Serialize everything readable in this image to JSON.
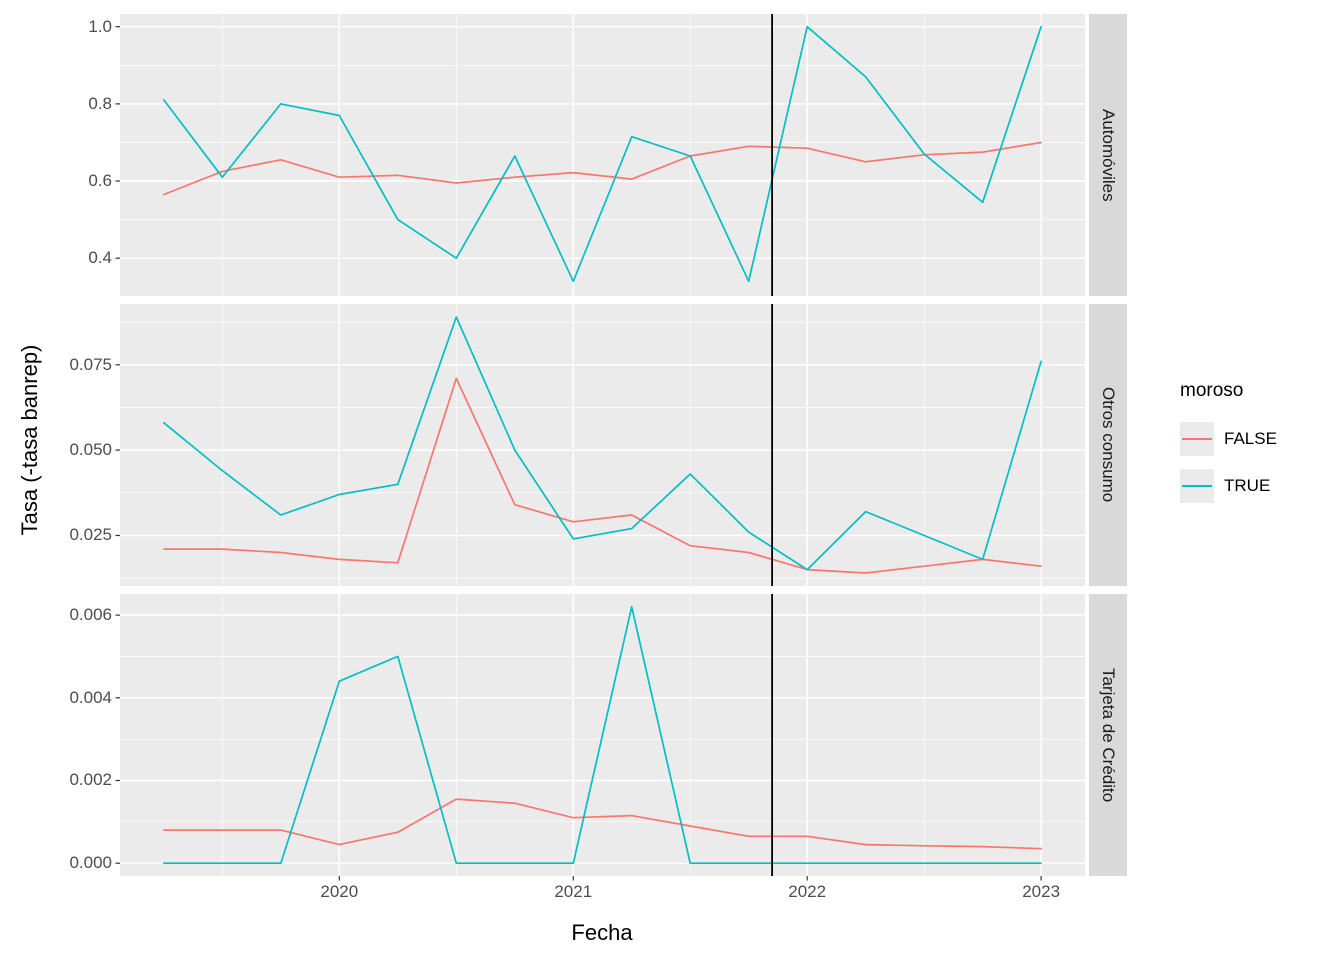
{
  "colors": {
    "false_series": "#F8766D",
    "true_series": "#00BFC4",
    "panel_bg": "#EBEBEB",
    "strip_bg": "#D9D9D9",
    "grid": "#FFFFFF",
    "tick_text": "#4D4D4D",
    "vline": "#000000"
  },
  "legend": {
    "title": "moroso",
    "entries": [
      {
        "label": "FALSE",
        "color": "#F8766D"
      },
      {
        "label": "TRUE",
        "color": "#00BFC4"
      }
    ]
  },
  "axes": {
    "x_label": "Fecha",
    "y_label": "Tasa (-tasa banrep)",
    "x_ticks": [
      2020,
      2021,
      2022,
      2023
    ],
    "xlim": [
      2019.0625,
      2023.1875
    ]
  },
  "vline_x": 2021.85,
  "chart_data": [
    {
      "type": "line",
      "facet": "Automóviles",
      "x": [
        2019.25,
        2019.5,
        2019.75,
        2020.0,
        2020.25,
        2020.5,
        2020.75,
        2021.0,
        2021.25,
        2021.5,
        2021.75,
        2022.0,
        2022.25,
        2022.5,
        2022.75,
        2023.0
      ],
      "series": [
        {
          "name": "FALSE",
          "values": [
            0.565,
            0.625,
            0.655,
            0.61,
            0.615,
            0.595,
            0.61,
            0.622,
            0.605,
            0.665,
            0.69,
            0.685,
            0.65,
            0.668,
            0.675,
            0.7
          ]
        },
        {
          "name": "TRUE",
          "values": [
            0.81,
            0.61,
            0.8,
            0.77,
            0.5,
            0.4,
            0.665,
            0.34,
            0.715,
            0.665,
            0.34,
            1.0,
            0.87,
            0.67,
            0.545,
            1.0
          ]
        }
      ],
      "y_ticks": [
        0.4,
        0.6,
        0.8,
        1.0
      ],
      "y_tick_labels": [
        "0.4",
        "0.6",
        "0.8",
        "1.0"
      ],
      "ylim": [
        0.302,
        1.033
      ]
    },
    {
      "type": "line",
      "facet": "Otros consumo",
      "x": [
        2019.25,
        2019.5,
        2019.75,
        2020.0,
        2020.25,
        2020.5,
        2020.75,
        2021.0,
        2021.25,
        2021.5,
        2021.75,
        2022.0,
        2022.25,
        2022.5,
        2022.75,
        2023.0
      ],
      "series": [
        {
          "name": "FALSE",
          "values": [
            0.021,
            0.021,
            0.02,
            0.018,
            0.017,
            0.071,
            0.034,
            0.029,
            0.031,
            0.022,
            0.02,
            0.015,
            0.014,
            0.016,
            0.018,
            0.016
          ]
        },
        {
          "name": "TRUE",
          "values": [
            0.058,
            0.044,
            0.031,
            0.037,
            0.04,
            0.089,
            0.05,
            0.024,
            0.027,
            0.043,
            0.026,
            0.015,
            0.032,
            0.025,
            0.018,
            0.076
          ]
        }
      ],
      "y_ticks": [
        0.025,
        0.05,
        0.075
      ],
      "y_tick_labels": [
        "0.025",
        "0.050",
        "0.075"
      ],
      "ylim": [
        0.0102,
        0.0928
      ]
    },
    {
      "type": "line",
      "facet": "Tarjeta de Crédito",
      "x": [
        2019.25,
        2019.5,
        2019.75,
        2020.0,
        2020.25,
        2020.5,
        2020.75,
        2021.0,
        2021.25,
        2021.5,
        2021.75,
        2022.0,
        2022.25,
        2022.5,
        2022.75,
        2023.0
      ],
      "series": [
        {
          "name": "FALSE",
          "values": [
            0.0008,
            0.0008,
            0.0008,
            0.00045,
            0.00075,
            0.00155,
            0.00145,
            0.0011,
            0.00115,
            0.0009,
            0.00065,
            0.00065,
            0.00045,
            0.00042,
            0.0004,
            0.00035
          ]
        },
        {
          "name": "TRUE",
          "values": [
            0,
            0,
            0,
            0.0044,
            0.005,
            0,
            0,
            0,
            0.0062,
            0,
            0,
            0,
            0,
            0,
            0,
            0
          ]
        }
      ],
      "y_ticks": [
        0.0,
        0.002,
        0.004,
        0.006
      ],
      "y_tick_labels": [
        "0.000",
        "0.002",
        "0.004",
        "0.006"
      ],
      "ylim": [
        -0.00031,
        0.00651
      ]
    }
  ]
}
